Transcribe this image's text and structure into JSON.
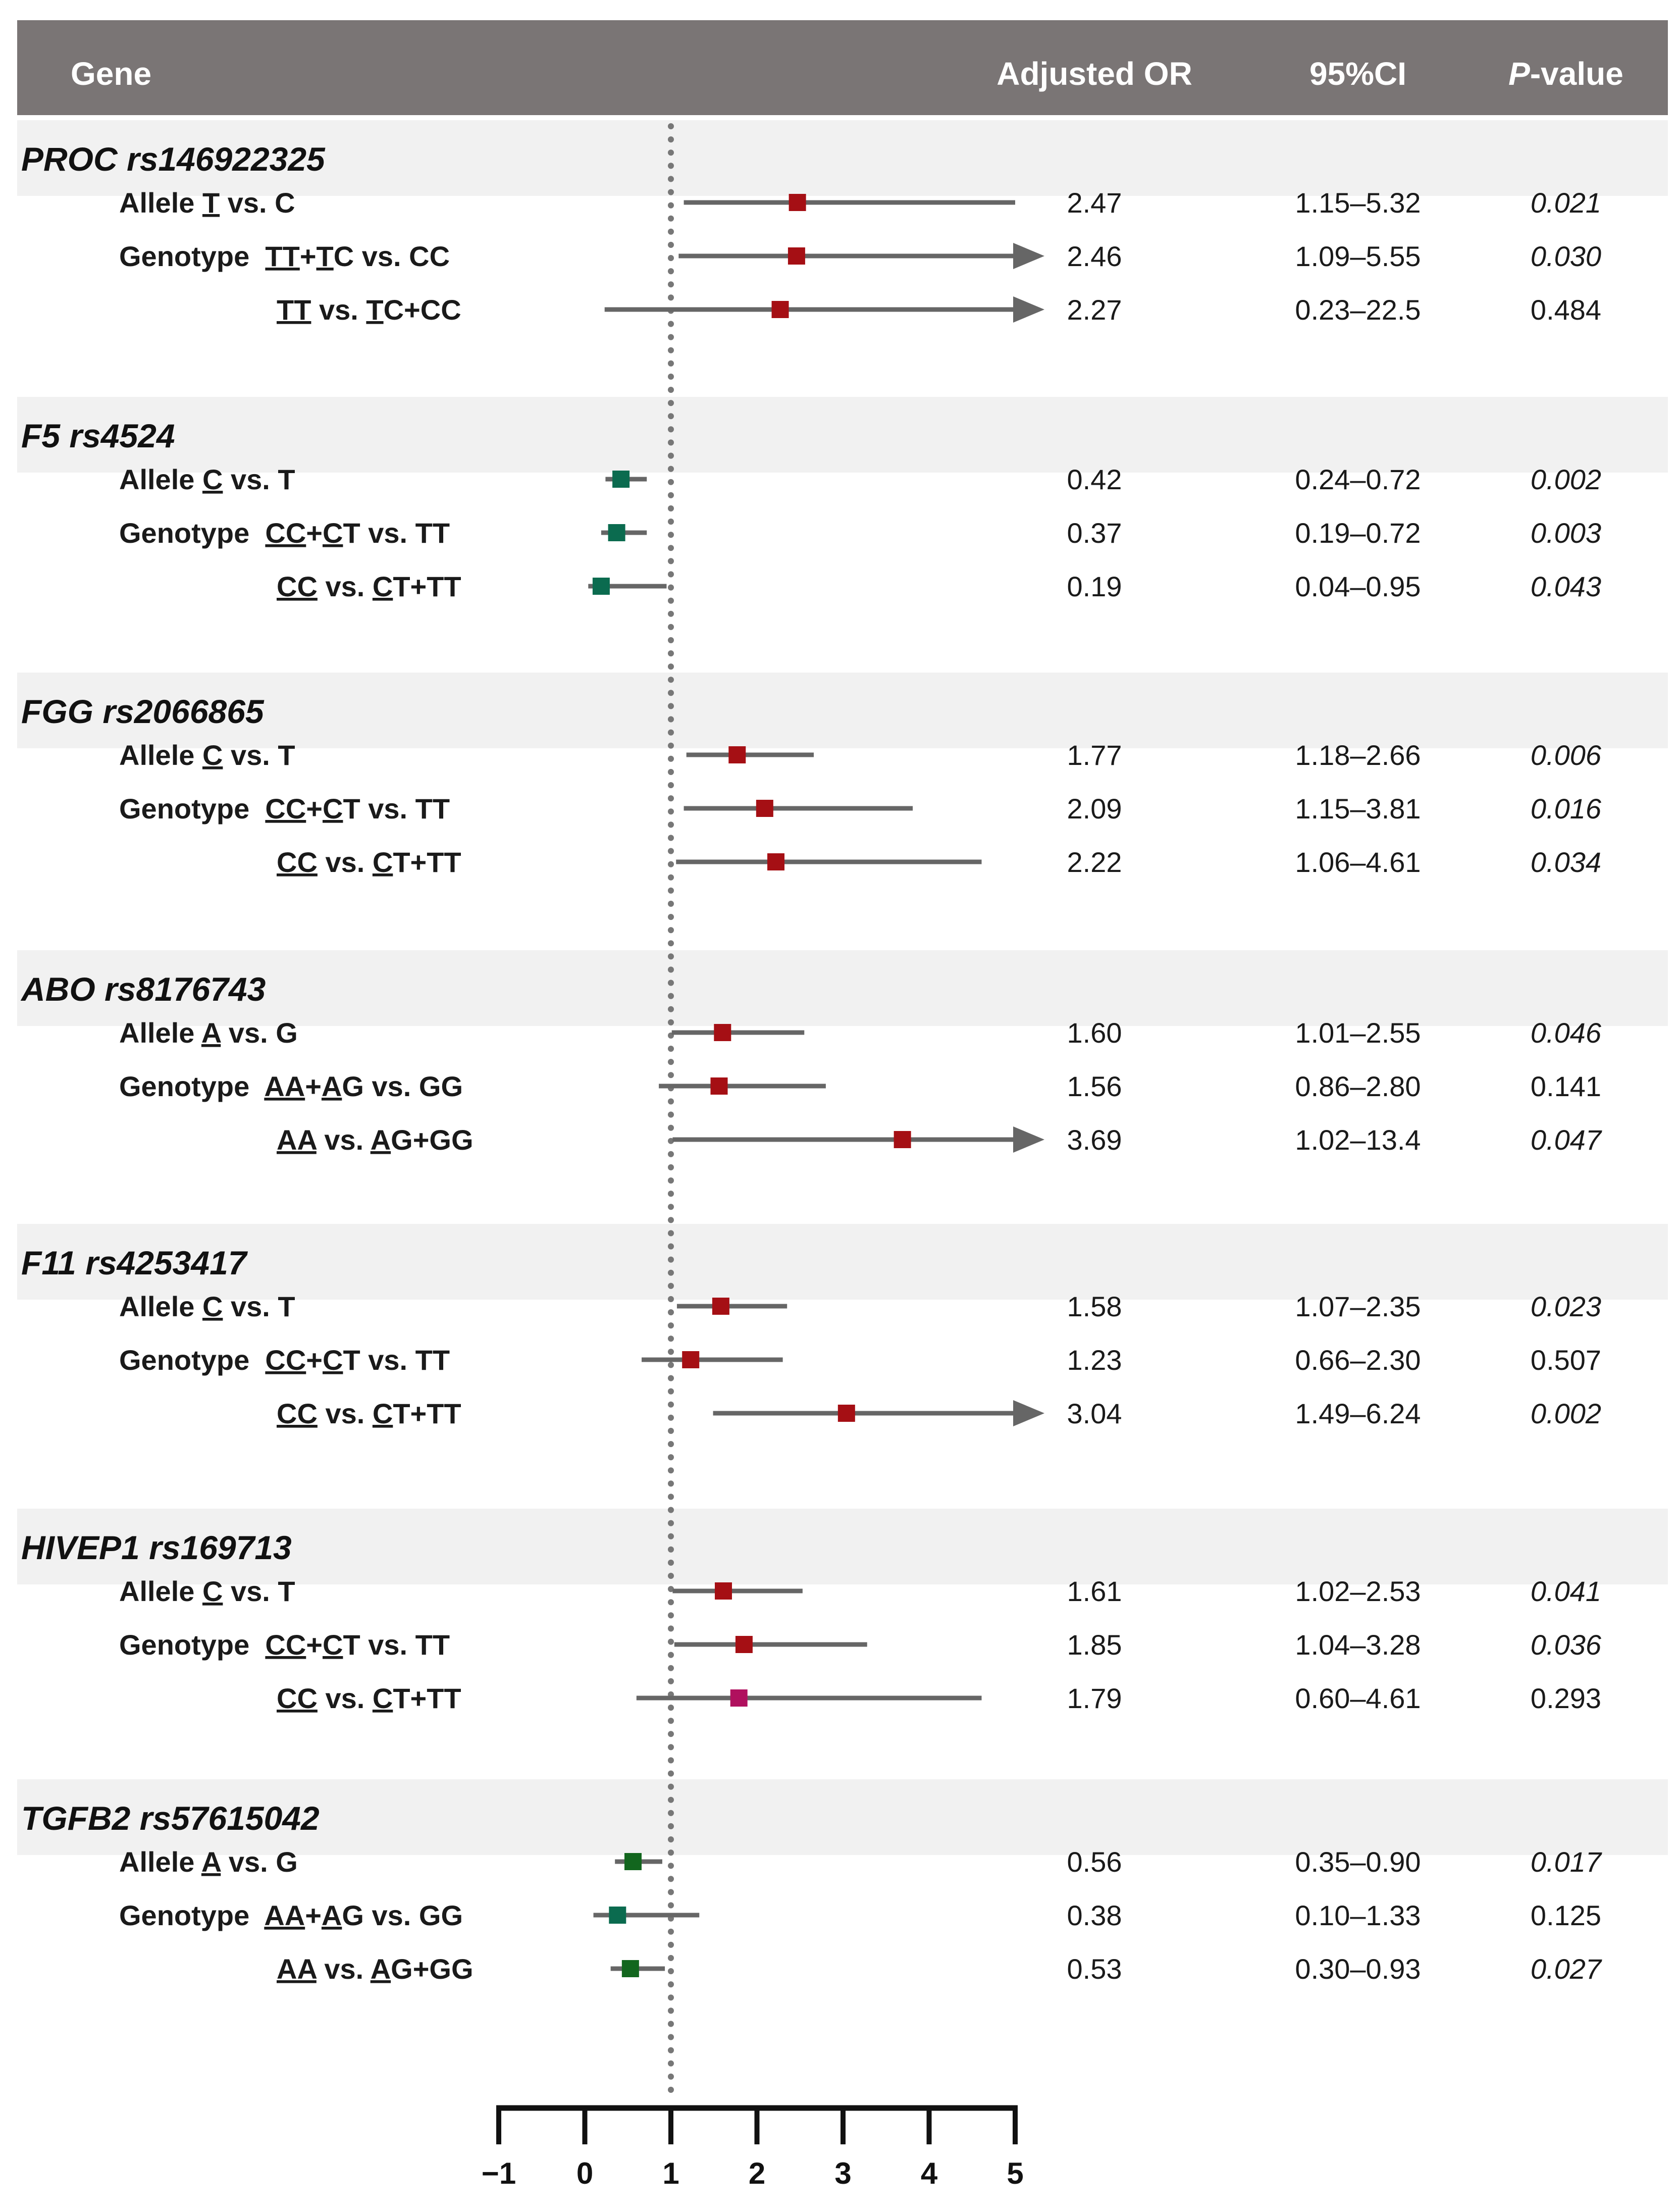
{
  "header": {
    "gene": "Gene",
    "or": "Adjusted OR",
    "ci": "95%CI",
    "p_italic": "P",
    "p_rest": "-value"
  },
  "colors": {
    "header_bg": "#7a7575",
    "band_bg": "#f1f1f1",
    "line": "#666666",
    "risk": "#a50f14",
    "protective_teal": "#0b6b4f",
    "protective_green": "#12661e",
    "magenta": "#b0105e",
    "ref_line": "#777777",
    "axis": "#111111"
  },
  "chart_data": {
    "type": "forest",
    "title": "",
    "xlabel": "Adjusted OR",
    "ylabel": "",
    "xlim": [
      -1,
      5
    ],
    "axis_ticks": [
      "-1",
      "0",
      "1",
      "2",
      "3",
      "4",
      "5"
    ],
    "reference_line": 1,
    "groups": [
      {
        "gene": "PROC rs146922325",
        "rows": [
          {
            "label": [
              [
                "Allele ",
                0
              ],
              [
                "T",
                1
              ],
              [
                " vs. C",
                0
              ]
            ],
            "indent": false,
            "or": 2.47,
            "lo": 1.15,
            "hi": 5.32,
            "or_text": "2.47",
            "ci_text": "1.15–5.32",
            "p_text": "0.021",
            "p_italic": true,
            "arrow": false,
            "color": "risk"
          },
          {
            "label": [
              [
                "Genotype  ",
                0
              ],
              [
                "TT",
                1
              ],
              [
                "+",
                0
              ],
              [
                "T",
                1
              ],
              [
                "C vs. CC",
                0
              ]
            ],
            "indent": false,
            "or": 2.46,
            "lo": 1.09,
            "hi": 5.55,
            "or_text": "2.46",
            "ci_text": "1.09–5.55",
            "p_text": "0.030",
            "p_italic": true,
            "arrow": true,
            "color": "risk"
          },
          {
            "label": [
              [
                "TT",
                1
              ],
              [
                " vs. ",
                0
              ],
              [
                "T",
                1
              ],
              [
                "C+CC",
                0
              ]
            ],
            "indent": true,
            "or": 2.27,
            "lo": 0.23,
            "hi": 22.5,
            "or_text": "2.27",
            "ci_text": "0.23–22.5",
            "p_text": "0.484",
            "p_italic": false,
            "arrow": true,
            "color": "risk"
          }
        ]
      },
      {
        "gene": "F5 rs4524",
        "rows": [
          {
            "label": [
              [
                "Allele ",
                0
              ],
              [
                "C",
                1
              ],
              [
                " vs. T",
                0
              ]
            ],
            "indent": false,
            "or": 0.42,
            "lo": 0.24,
            "hi": 0.72,
            "or_text": "0.42",
            "ci_text": "0.24–0.72",
            "p_text": "0.002",
            "p_italic": true,
            "arrow": false,
            "color": "protective_teal"
          },
          {
            "label": [
              [
                "Genotype  ",
                0
              ],
              [
                "CC",
                1
              ],
              [
                "+",
                0
              ],
              [
                "C",
                1
              ],
              [
                "T vs. TT",
                0
              ]
            ],
            "indent": false,
            "or": 0.37,
            "lo": 0.19,
            "hi": 0.72,
            "or_text": "0.37",
            "ci_text": "0.19–0.72",
            "p_text": "0.003",
            "p_italic": true,
            "arrow": false,
            "color": "protective_teal"
          },
          {
            "label": [
              [
                "CC",
                1
              ],
              [
                " vs. ",
                0
              ],
              [
                "C",
                1
              ],
              [
                "T+TT",
                0
              ]
            ],
            "indent": true,
            "or": 0.19,
            "lo": 0.04,
            "hi": 0.95,
            "or_text": "0.19",
            "ci_text": "0.04–0.95",
            "p_text": "0.043",
            "p_italic": true,
            "arrow": false,
            "color": "protective_teal"
          }
        ]
      },
      {
        "gene": "FGG rs2066865",
        "rows": [
          {
            "label": [
              [
                "Allele ",
                0
              ],
              [
                "C",
                1
              ],
              [
                " vs. T",
                0
              ]
            ],
            "indent": false,
            "or": 1.77,
            "lo": 1.18,
            "hi": 2.66,
            "or_text": "1.77",
            "ci_text": "1.18–2.66",
            "p_text": "0.006",
            "p_italic": true,
            "arrow": false,
            "color": "risk"
          },
          {
            "label": [
              [
                "Genotype  ",
                0
              ],
              [
                "CC",
                1
              ],
              [
                "+",
                0
              ],
              [
                "C",
                1
              ],
              [
                "T vs. TT",
                0
              ]
            ],
            "indent": false,
            "or": 2.09,
            "lo": 1.15,
            "hi": 3.81,
            "or_text": "2.09",
            "ci_text": "1.15–3.81",
            "p_text": "0.016",
            "p_italic": true,
            "arrow": false,
            "color": "risk"
          },
          {
            "label": [
              [
                "CC",
                1
              ],
              [
                " vs. ",
                0
              ],
              [
                "C",
                1
              ],
              [
                "T+TT",
                0
              ]
            ],
            "indent": true,
            "or": 2.22,
            "lo": 1.06,
            "hi": 4.61,
            "or_text": "2.22",
            "ci_text": "1.06–4.61",
            "p_text": "0.034",
            "p_italic": true,
            "arrow": false,
            "color": "risk"
          }
        ]
      },
      {
        "gene": "ABO rs8176743",
        "rows": [
          {
            "label": [
              [
                "Allele ",
                0
              ],
              [
                "A",
                1
              ],
              [
                " vs. G",
                0
              ]
            ],
            "indent": false,
            "or": 1.6,
            "lo": 1.01,
            "hi": 2.55,
            "or_text": "1.60",
            "ci_text": "1.01–2.55",
            "p_text": "0.046",
            "p_italic": true,
            "arrow": false,
            "color": "risk"
          },
          {
            "label": [
              [
                "Genotype  ",
                0
              ],
              [
                "AA",
                1
              ],
              [
                "+",
                0
              ],
              [
                "A",
                1
              ],
              [
                "G vs. GG",
                0
              ]
            ],
            "indent": false,
            "or": 1.56,
            "lo": 0.86,
            "hi": 2.8,
            "or_text": "1.56",
            "ci_text": "0.86–2.80",
            "p_text": "0.141",
            "p_italic": false,
            "arrow": false,
            "color": "risk"
          },
          {
            "label": [
              [
                "AA",
                1
              ],
              [
                " vs. ",
                0
              ],
              [
                "A",
                1
              ],
              [
                "G+GG",
                0
              ]
            ],
            "indent": true,
            "or": 3.69,
            "lo": 1.02,
            "hi": 13.4,
            "or_text": "3.69",
            "ci_text": "1.02–13.4",
            "p_text": "0.047",
            "p_italic": true,
            "arrow": true,
            "color": "risk"
          }
        ]
      },
      {
        "gene": "F11 rs4253417",
        "rows": [
          {
            "label": [
              [
                "Allele ",
                0
              ],
              [
                "C",
                1
              ],
              [
                " vs. T",
                0
              ]
            ],
            "indent": false,
            "or": 1.58,
            "lo": 1.07,
            "hi": 2.35,
            "or_text": "1.58",
            "ci_text": "1.07–2.35",
            "p_text": "0.023",
            "p_italic": true,
            "arrow": false,
            "color": "risk"
          },
          {
            "label": [
              [
                "Genotype  ",
                0
              ],
              [
                "CC",
                1
              ],
              [
                "+",
                0
              ],
              [
                "C",
                1
              ],
              [
                "T vs. TT",
                0
              ]
            ],
            "indent": false,
            "or": 1.23,
            "lo": 0.66,
            "hi": 2.3,
            "or_text": "1.23",
            "ci_text": "0.66–2.30",
            "p_text": "0.507",
            "p_italic": false,
            "arrow": false,
            "color": "risk"
          },
          {
            "label": [
              [
                "CC",
                1
              ],
              [
                " vs. ",
                0
              ],
              [
                "C",
                1
              ],
              [
                "T+TT",
                0
              ]
            ],
            "indent": true,
            "or": 3.04,
            "lo": 1.49,
            "hi": 6.24,
            "or_text": "3.04",
            "ci_text": "1.49–6.24",
            "p_text": "0.002",
            "p_italic": true,
            "arrow": true,
            "color": "risk"
          }
        ]
      },
      {
        "gene": "HIVEP1 rs169713",
        "rows": [
          {
            "label": [
              [
                "Allele ",
                0
              ],
              [
                "C",
                1
              ],
              [
                " vs. T",
                0
              ]
            ],
            "indent": false,
            "or": 1.61,
            "lo": 1.02,
            "hi": 2.53,
            "or_text": "1.61",
            "ci_text": "1.02–2.53",
            "p_text": "0.041",
            "p_italic": true,
            "arrow": false,
            "color": "risk"
          },
          {
            "label": [
              [
                "Genotype  ",
                0
              ],
              [
                "CC",
                1
              ],
              [
                "+",
                0
              ],
              [
                "C",
                1
              ],
              [
                "T vs. TT",
                0
              ]
            ],
            "indent": false,
            "or": 1.85,
            "lo": 1.04,
            "hi": 3.28,
            "or_text": "1.85",
            "ci_text": "1.04–3.28",
            "p_text": "0.036",
            "p_italic": true,
            "arrow": false,
            "color": "risk"
          },
          {
            "label": [
              [
                "CC",
                1
              ],
              [
                " vs. ",
                0
              ],
              [
                "C",
                1
              ],
              [
                "T+TT",
                0
              ]
            ],
            "indent": true,
            "or": 1.79,
            "lo": 0.6,
            "hi": 4.61,
            "or_text": "1.79",
            "ci_text": "0.60–4.61",
            "p_text": "0.293",
            "p_italic": false,
            "arrow": false,
            "color": "magenta"
          }
        ]
      },
      {
        "gene": "TGFB2 rs57615042",
        "rows": [
          {
            "label": [
              [
                "Allele ",
                0
              ],
              [
                "A",
                1
              ],
              [
                " vs. G",
                0
              ]
            ],
            "indent": false,
            "or": 0.56,
            "lo": 0.35,
            "hi": 0.9,
            "or_text": "0.56",
            "ci_text": "0.35–0.90",
            "p_text": "0.017",
            "p_italic": true,
            "arrow": false,
            "color": "protective_green"
          },
          {
            "label": [
              [
                "Genotype  ",
                0
              ],
              [
                "AA",
                1
              ],
              [
                "+",
                0
              ],
              [
                "A",
                1
              ],
              [
                "G vs. GG",
                0
              ]
            ],
            "indent": false,
            "or": 0.38,
            "lo": 0.1,
            "hi": 1.33,
            "or_text": "0.38",
            "ci_text": "0.10–1.33",
            "p_text": "0.125",
            "p_italic": false,
            "arrow": false,
            "color": "protective_teal"
          },
          {
            "label": [
              [
                "AA",
                1
              ],
              [
                " vs. ",
                0
              ],
              [
                "A",
                1
              ],
              [
                "G+GG",
                0
              ]
            ],
            "indent": true,
            "or": 0.53,
            "lo": 0.3,
            "hi": 0.93,
            "or_text": "0.53",
            "ci_text": "0.30–0.93",
            "p_text": "0.027",
            "p_italic": true,
            "arrow": false,
            "color": "protective_green"
          }
        ]
      }
    ]
  }
}
